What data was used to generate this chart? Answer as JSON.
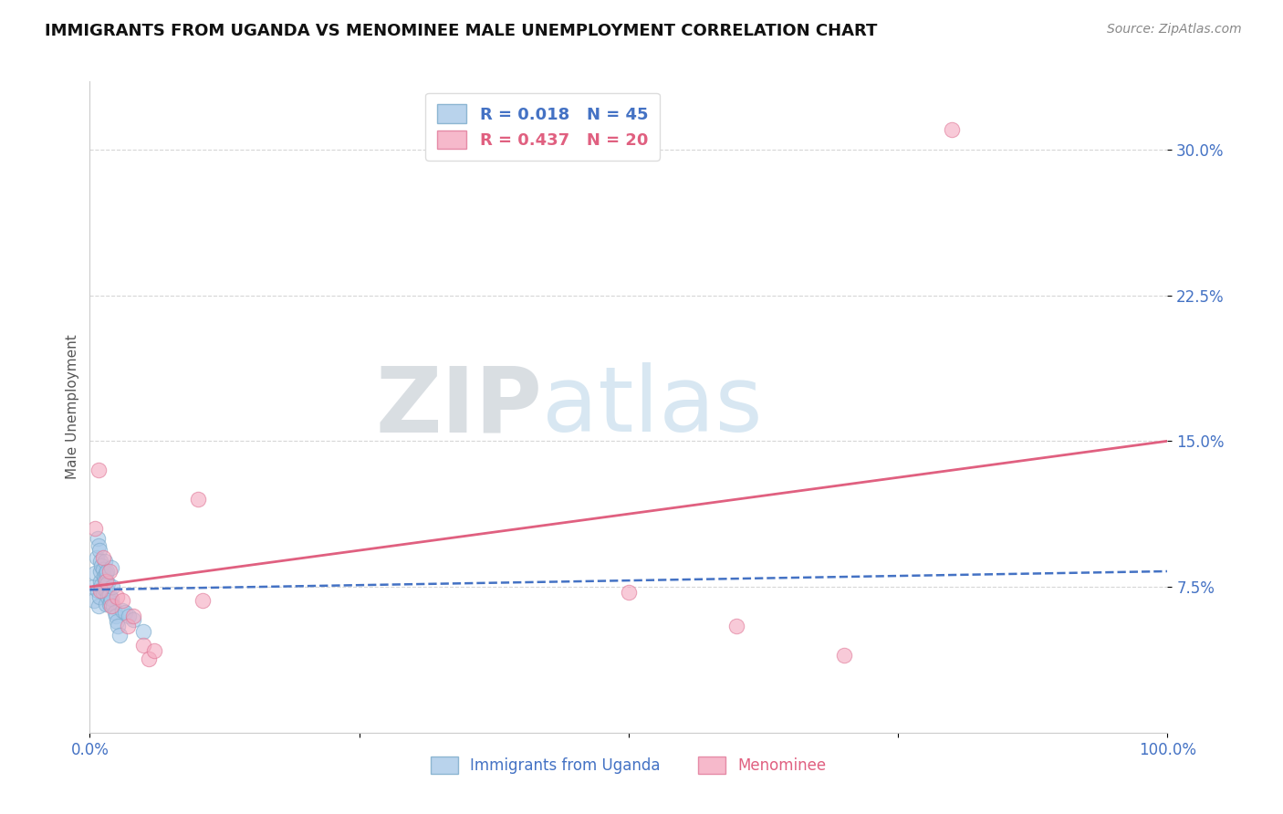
{
  "title": "IMMIGRANTS FROM UGANDA VS MENOMINEE MALE UNEMPLOYMENT CORRELATION CHART",
  "source_text": "Source: ZipAtlas.com",
  "ylabel": "Male Unemployment",
  "xlim": [
    0.0,
    1.0
  ],
  "ylim": [
    0.0,
    0.335
  ],
  "yticks": [
    0.075,
    0.15,
    0.225,
    0.3
  ],
  "ytick_labels": [
    "7.5%",
    "15.0%",
    "22.5%",
    "30.0%"
  ],
  "xtick_positions": [
    0.0,
    0.25,
    0.5,
    0.75,
    1.0
  ],
  "xtick_labels": [
    "0.0%",
    "",
    "",
    "",
    "100.0%"
  ],
  "blue_face_color": "#a8c8e8",
  "blue_edge_color": "#7aaaca",
  "pink_face_color": "#f4a8be",
  "pink_edge_color": "#e07898",
  "blue_line_color": "#4472c4",
  "pink_line_color": "#e06080",
  "tick_color": "#4472c4",
  "grid_color": "#cccccc",
  "legend_r_blue": "R = 0.018",
  "legend_n_blue": "N = 45",
  "legend_r_pink": "R = 0.437",
  "legend_n_pink": "N = 20",
  "legend_label_blue": "Immigrants from Uganda",
  "legend_label_pink": "Menominee",
  "watermark_zip": "ZIP",
  "watermark_atlas": "atlas",
  "watermark_zip_color": "#c0c8d0",
  "watermark_atlas_color": "#b8d4e8",
  "blue_scatter_x": [
    0.003,
    0.004,
    0.005,
    0.006,
    0.007,
    0.007,
    0.008,
    0.008,
    0.009,
    0.009,
    0.01,
    0.01,
    0.01,
    0.011,
    0.011,
    0.012,
    0.012,
    0.013,
    0.013,
    0.014,
    0.014,
    0.015,
    0.015,
    0.015,
    0.016,
    0.016,
    0.017,
    0.017,
    0.018,
    0.018,
    0.019,
    0.02,
    0.02,
    0.021,
    0.022,
    0.023,
    0.024,
    0.025,
    0.026,
    0.028,
    0.03,
    0.033,
    0.036,
    0.04,
    0.05
  ],
  "blue_scatter_y": [
    0.075,
    0.068,
    0.082,
    0.09,
    0.073,
    0.1,
    0.065,
    0.096,
    0.07,
    0.094,
    0.078,
    0.088,
    0.083,
    0.086,
    0.076,
    0.072,
    0.084,
    0.08,
    0.074,
    0.079,
    0.088,
    0.082,
    0.076,
    0.066,
    0.073,
    0.083,
    0.07,
    0.077,
    0.071,
    0.066,
    0.067,
    0.069,
    0.085,
    0.075,
    0.065,
    0.062,
    0.06,
    0.057,
    0.055,
    0.05,
    0.063,
    0.062,
    0.06,
    0.058,
    0.052
  ],
  "pink_scatter_x": [
    0.005,
    0.008,
    0.01,
    0.012,
    0.015,
    0.018,
    0.02,
    0.025,
    0.03,
    0.035,
    0.04,
    0.05,
    0.055,
    0.06,
    0.1,
    0.105,
    0.5,
    0.6,
    0.7,
    0.8
  ],
  "pink_scatter_y": [
    0.105,
    0.135,
    0.073,
    0.09,
    0.078,
    0.083,
    0.065,
    0.07,
    0.068,
    0.055,
    0.06,
    0.045,
    0.038,
    0.042,
    0.12,
    0.068,
    0.072,
    0.055,
    0.04,
    0.31
  ],
  "blue_trendline_x": [
    0.0,
    1.0
  ],
  "blue_trendline_y": [
    0.0735,
    0.083
  ],
  "pink_trendline_x": [
    0.0,
    1.0
  ],
  "pink_trendline_y": [
    0.075,
    0.15
  ]
}
